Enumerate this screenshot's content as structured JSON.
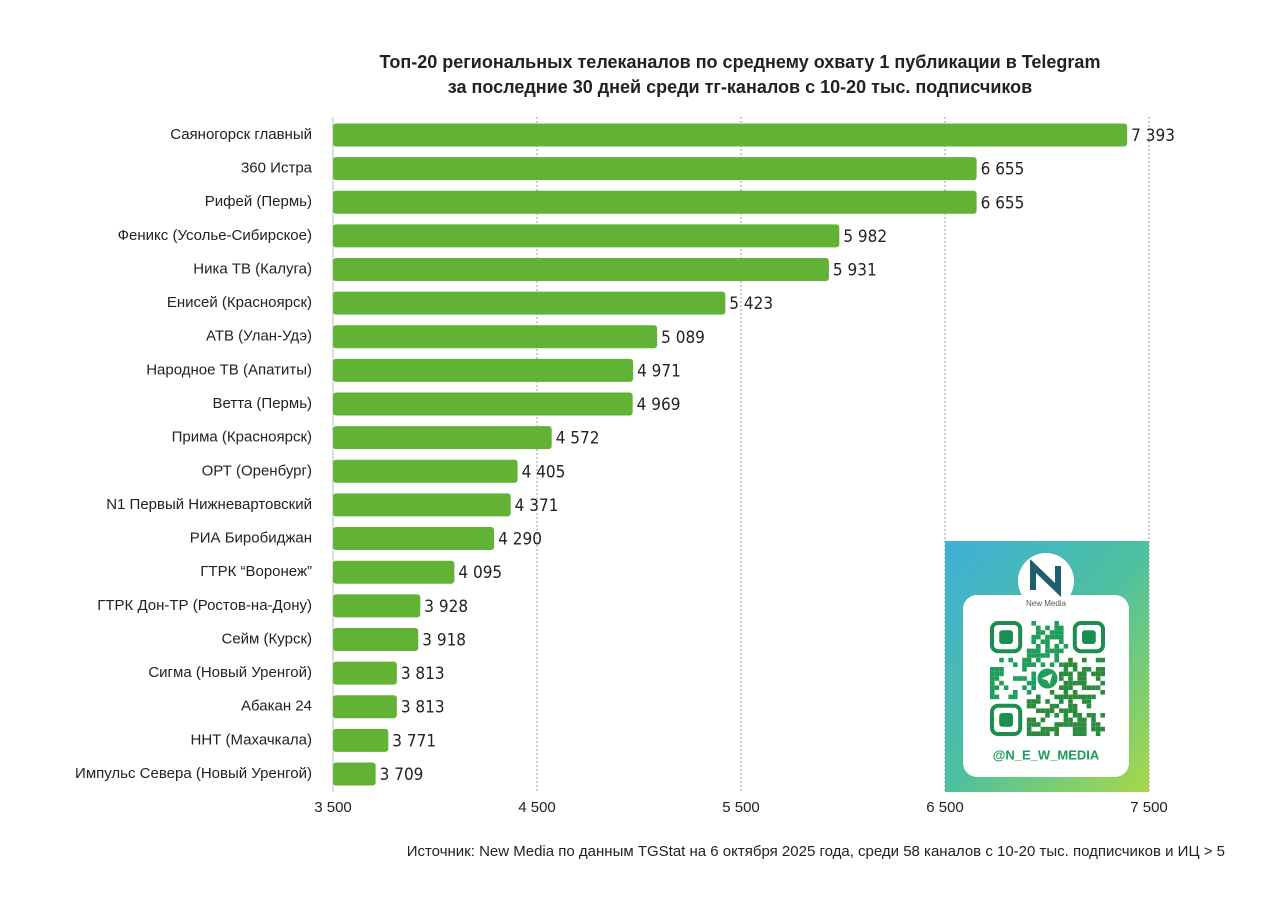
{
  "chart_data": {
    "type": "barh",
    "title": [
      "Топ-20 региональных телеканалов по среднему охвату 1 публикации в Telegram",
      "за последние 30 дней среди тг-каналов с 10-20 тыс. подписчиков"
    ],
    "categories": [
      "Саяногорск главный",
      "360 Истра",
      "Рифей (Пермь)",
      "Феникс (Усолье-Сибирское)",
      "Ника ТВ (Калуга)",
      "Енисей (Красноярск)",
      "АТВ (Улан-Удэ)",
      "Народное ТВ (Апатиты)",
      "Ветта (Пермь)",
      "Прима (Красноярск)",
      "ОРТ (Оренбург)",
      "N1 Первый Нижневартовский",
      "РИА Биробиджан",
      "ГТРК “Воронеж”",
      "ГТРК Дон-ТР (Ростов-на-Дону)",
      "Сейм (Курск)",
      "Сигма (Новый Уренгой)",
      "Абакан 24",
      "ННТ (Махачкала)",
      "Импульс Севера (Новый Уренгой)"
    ],
    "values": [
      7393,
      6655,
      6655,
      5982,
      5931,
      5423,
      5089,
      4971,
      4969,
      4572,
      4405,
      4371,
      4290,
      4095,
      3928,
      3918,
      3813,
      3813,
      3771,
      3709
    ],
    "value_labels": [
      "7 393",
      "6 655",
      "6 655",
      "5 982",
      "5 931",
      "5 423",
      "5 089",
      "4 971",
      "4 969",
      "4 572",
      "4 405",
      "4 371",
      "4 290",
      "4 095",
      "3 928",
      "3 918",
      "3 813",
      "3 813",
      "3 771",
      "3 709"
    ],
    "color": "#62b236",
    "xlim": [
      3500,
      7500
    ],
    "xticks": [
      {
        "value": 3500,
        "label": "3 500"
      },
      {
        "value": 4500,
        "label": "4 500"
      },
      {
        "value": 5500,
        "label": "5 500"
      },
      {
        "value": 6500,
        "label": "6 500"
      },
      {
        "value": 7500,
        "label": "7 500"
      }
    ],
    "grid": true,
    "source": "Источник: New Media по данным TGStat на 6 октября 2025 года, среди 58 каналов с 10-20 тыс. подписчиков и ИЦ > 5",
    "annotations": [
      "New Media",
      "@N_E_W_MEDIA"
    ]
  }
}
